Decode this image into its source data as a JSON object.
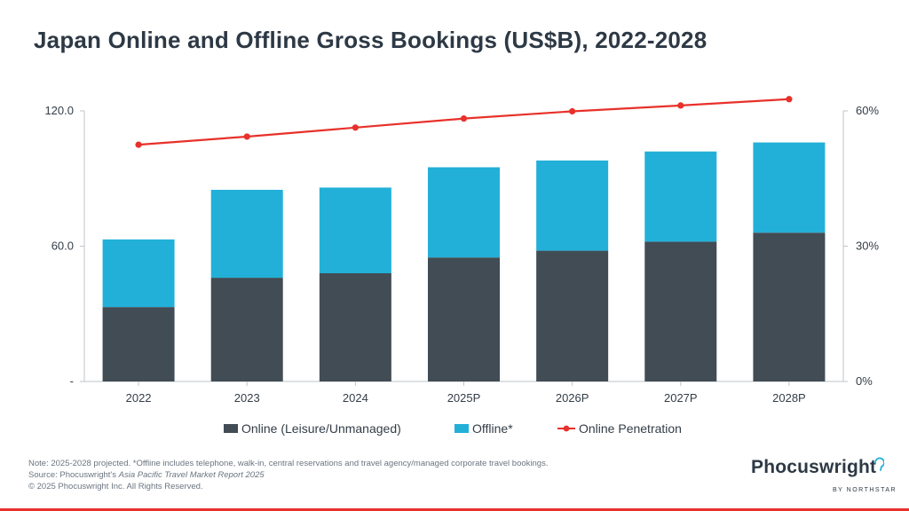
{
  "title": "Japan Online and Offline Gross Bookings (US$B), 2022-2028",
  "colors": {
    "online": "#414c55",
    "offline": "#22b0d8",
    "penetration": "#e8312a",
    "axis": "#bfc5ca",
    "text": "#333d47",
    "brand": "#2d3945"
  },
  "chart_data": {
    "type": "bar",
    "stacked": true,
    "categories": [
      "2022",
      "2023",
      "2024",
      "2025P",
      "2026P",
      "2027P",
      "2028P"
    ],
    "series": [
      {
        "name": "Online (Leisure/Unmanaged)",
        "values": [
          33,
          46,
          48,
          55,
          58,
          62,
          66
        ]
      },
      {
        "name": "Offline*",
        "values": [
          30,
          39,
          38,
          40,
          40,
          40,
          40
        ]
      }
    ],
    "line_series": {
      "name": "Online Penetration",
      "axis": "right",
      "values": [
        52.5,
        54.3,
        56.3,
        58.3,
        59.9,
        61.2,
        62.6
      ]
    },
    "y_left": {
      "ylim": [
        0,
        120
      ],
      "ticks": [
        0,
        60,
        120
      ],
      "tick_labels": [
        "-",
        "60.0",
        "120.0"
      ]
    },
    "y_right": {
      "ylim": [
        0,
        60
      ],
      "ticks": [
        0,
        30,
        60
      ],
      "tick_labels": [
        "0%",
        "30%",
        "60%"
      ]
    },
    "legend": {
      "placement": "bottom-center"
    }
  },
  "footnote": {
    "line1": "Note: 2025-2028 projected. *Offline includes telephone, walk-in, central reservations and travel agency/managed corporate travel bookings.",
    "line2_prefix": "Source: Phocuswright's ",
    "line2_italic": "Asia Pacific Travel Market Report 2025",
    "line3": "© 2025 Phocuswright Inc. All Rights Reserved."
  },
  "logo": {
    "wordmark": "Phocuswright",
    "tagline": "BY NORTHSTAR"
  }
}
